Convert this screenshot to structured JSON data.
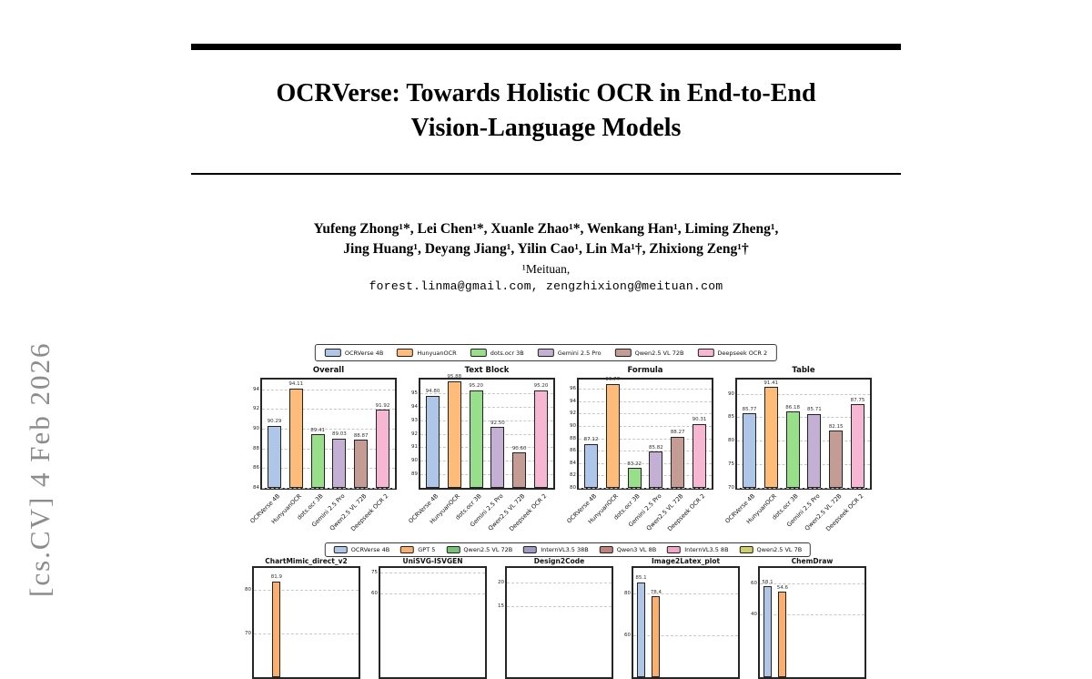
{
  "paper": {
    "arxiv_sidebar": "[cs.CV] 4 Feb 2026",
    "title_line1": "OCRVerse: Towards Holistic OCR in End-to-End",
    "title_line2": "Vision-Language Models",
    "authors_line1": "Yufeng Zhong¹*, Lei Chen¹*, Xuanle Zhao¹*, Wenkang Han¹, Liming Zheng¹,",
    "authors_line2": "Jing Huang¹, Deyang Jiang¹, Yilin Cao¹, Lin Ma¹†, Zhixiong Zeng¹†",
    "affiliation": "¹Meituan,",
    "emails": "forest.linma@gmail.com, zengzhixiong@meituan.com"
  },
  "figures": {
    "row1": {
      "value_decimals": 2,
      "legend": [
        {
          "label": "OCRVerse 4B",
          "color": "#aec7e8"
        },
        {
          "label": "HunyuanOCR",
          "color": "#ffbb78"
        },
        {
          "label": "dots.ocr 3B",
          "color": "#98df8a"
        },
        {
          "label": "Gemini 2.5 Pro",
          "color": "#c5b0d5"
        },
        {
          "label": "Qwen2.5 VL 72B",
          "color": "#c49c94"
        },
        {
          "label": "Deepseek OCR 2",
          "color": "#f7b6d2"
        }
      ]
    },
    "row2": {
      "value_decimals": 1,
      "legend": [
        {
          "label": "OCRVerse 4B",
          "color": "#aec7e8"
        },
        {
          "label": "GPT 5",
          "color": "#fdae6b"
        },
        {
          "label": "Qwen2.5 VL 72B",
          "color": "#74c476"
        },
        {
          "label": "InternVL3.5 38B",
          "color": "#9e9ac8"
        },
        {
          "label": "Qwen3 VL 8B",
          "color": "#c0827a"
        },
        {
          "label": "InternVL3.5 8B",
          "color": "#f4a6c8"
        },
        {
          "label": "Qwen2.5 VL 7B",
          "color": "#cdd161"
        }
      ]
    }
  },
  "chart_data": [
    {
      "type": "bar",
      "row": "row1",
      "title": "Overall",
      "categories": [
        "OCRVerse 4B",
        "HunyuanOCR",
        "dots.ocr 3B",
        "Gemini 2.5 Pro",
        "Qwen2.5 VL 72B",
        "Deepseek OCR 2"
      ],
      "values": [
        90.29,
        94.11,
        89.41,
        89.03,
        88.87,
        91.92
      ],
      "ylim": [
        84,
        95
      ],
      "yticks": [
        84,
        86,
        88,
        90,
        92,
        94
      ]
    },
    {
      "type": "bar",
      "row": "row1",
      "title": "Text Block",
      "categories": [
        "OCRVerse 4B",
        "HunyuanOCR",
        "dots.ocr 3B",
        "Gemini 2.5 Pro",
        "Qwen2.5 VL 72B",
        "Deepseek OCR 2"
      ],
      "values": [
        94.8,
        95.88,
        95.2,
        92.5,
        90.6,
        95.2
      ],
      "ylim": [
        88,
        96
      ],
      "yticks": [
        89,
        90,
        91,
        92,
        93,
        94,
        95
      ]
    },
    {
      "type": "bar",
      "row": "row1",
      "title": "Formula",
      "categories": [
        "OCRVerse 4B",
        "HunyuanOCR",
        "dots.ocr 3B",
        "Gemini 2.5 Pro",
        "Qwen2.5 VL 72B",
        "Deepseek OCR 2"
      ],
      "values": [
        87.12,
        96.77,
        83.22,
        85.82,
        88.27,
        90.31
      ],
      "ylim": [
        80,
        97.5
      ],
      "yticks": [
        80,
        82,
        84,
        86,
        88,
        90,
        92,
        94,
        96
      ]
    },
    {
      "type": "bar",
      "row": "row1",
      "title": "Table",
      "categories": [
        "OCRVerse 4B",
        "HunyuanOCR",
        "dots.ocr 3B",
        "Gemini 2.5 Pro",
        "Qwen2.5 VL 72B",
        "Deepseek OCR 2"
      ],
      "values": [
        85.77,
        91.41,
        86.18,
        85.71,
        82.15,
        87.75
      ],
      "ylim": [
        70,
        93
      ],
      "yticks": [
        70,
        75,
        80,
        85,
        90
      ]
    },
    {
      "type": "bar",
      "row": "row2",
      "title": "ChartMimic_direct_v2",
      "categories": [
        "OCRVerse 4B",
        "GPT 5",
        "Qwen2.5 VL 72B",
        "InternVL3.5 38B",
        "Qwen3 VL 8B",
        "InternVL3.5 8B",
        "Qwen2.5 VL 7B"
      ],
      "values": [
        null,
        81.9,
        null,
        null,
        null,
        null,
        null
      ],
      "ylim": [
        60,
        85
      ],
      "yticks": [
        80,
        70
      ]
    },
    {
      "type": "bar",
      "row": "row2",
      "title": "UniSVG-ISVGEN",
      "categories": [
        "OCRVerse 4B",
        "GPT 5",
        "Qwen2.5 VL 72B",
        "InternVL3.5 38B",
        "Qwen3 VL 8B",
        "InternVL3.5 8B",
        "Qwen2.5 VL 7B"
      ],
      "values": [
        null,
        null,
        null,
        null,
        null,
        null,
        null
      ],
      "ylim": [
        0,
        78
      ],
      "yticks": [
        75,
        60
      ]
    },
    {
      "type": "bar",
      "row": "row2",
      "title": "Design2Code",
      "categories": [
        "OCRVerse 4B",
        "GPT 5",
        "Qwen2.5 VL 72B",
        "InternVL3.5 38B",
        "Qwen3 VL 8B",
        "InternVL3.5 8B",
        "Qwen2.5 VL 7B"
      ],
      "values": [
        null,
        null,
        null,
        null,
        null,
        null,
        null
      ],
      "ylim": [
        0,
        23
      ],
      "yticks": [
        20,
        15
      ]
    },
    {
      "type": "bar",
      "row": "row2",
      "title": "Image2Latex_plot",
      "categories": [
        "OCRVerse 4B",
        "GPT 5",
        "Qwen2.5 VL 72B",
        "InternVL3.5 38B",
        "Qwen3 VL 8B",
        "InternVL3.5 8B",
        "Qwen2.5 VL 7B"
      ],
      "values": [
        85.1,
        78.4,
        null,
        null,
        null,
        null,
        null
      ],
      "ylim": [
        40,
        92
      ],
      "yticks": [
        80,
        60
      ]
    },
    {
      "type": "bar",
      "row": "row2",
      "title": "ChemDraw",
      "categories": [
        "OCRVerse 4B",
        "GPT 5",
        "Qwen2.5 VL 72B",
        "InternVL3.5 38B",
        "Qwen3 VL 8B",
        "InternVL3.5 8B",
        "Qwen2.5 VL 7B"
      ],
      "values": [
        58.1,
        54.6,
        null,
        null,
        null,
        null,
        null
      ],
      "ylim": [
        0,
        70
      ],
      "yticks": [
        60,
        40
      ]
    }
  ]
}
